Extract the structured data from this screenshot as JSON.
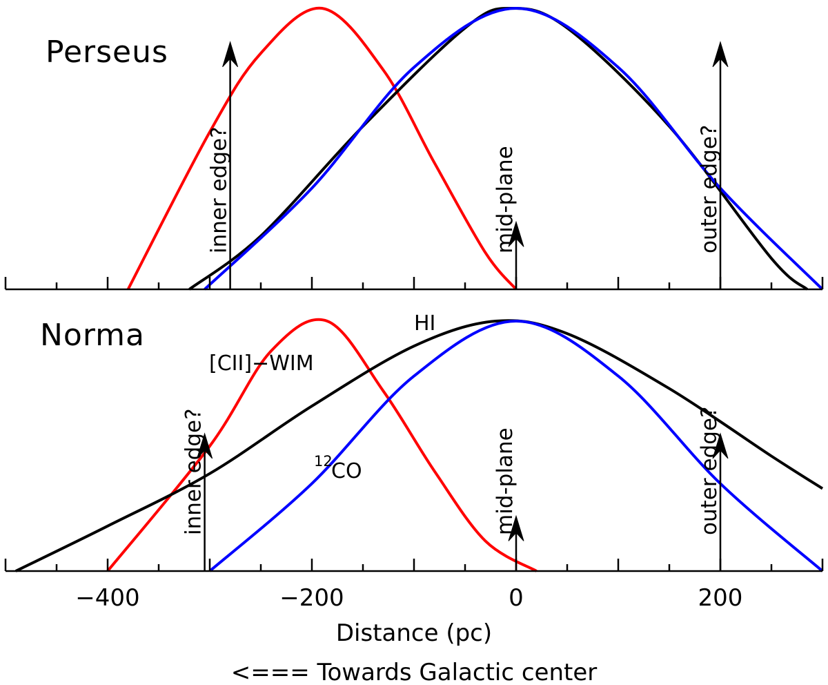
{
  "chart_data": [
    {
      "type": "line",
      "title": "Perseus",
      "xlabel": "",
      "ylabel": "",
      "xlim": [
        -500,
        300
      ],
      "ylim": [
        0,
        1
      ],
      "grid": false,
      "series": [
        {
          "name": "[CII]-WIM",
          "color": "#ff0000",
          "center": -190,
          "range": [
            -380,
            0
          ],
          "x": [
            -380,
            -300,
            -250,
            -190,
            -130,
            -80,
            -30,
            0
          ],
          "y": [
            0,
            0.56,
            0.84,
            1.0,
            0.78,
            0.45,
            0.13,
            0
          ]
        },
        {
          "name": "HI",
          "color": "#000000",
          "center": -5,
          "range": [
            -320,
            285
          ],
          "x": [
            -320,
            -250,
            -150,
            -50,
            -5,
            50,
            150,
            250,
            285
          ],
          "y": [
            0,
            0.19,
            0.58,
            0.93,
            1.0,
            0.93,
            0.58,
            0.11,
            0
          ]
        },
        {
          "name": "12CO",
          "color": "#0000ff",
          "center": 0,
          "range": [
            -305,
            300
          ],
          "x": [
            -305,
            -200,
            -100,
            0,
            100,
            200,
            300
          ],
          "y": [
            0,
            0.36,
            0.79,
            1.0,
            0.79,
            0.36,
            0
          ]
        }
      ],
      "markers": [
        {
          "label": "inner edge?",
          "x": -280,
          "height": 0.88
        },
        {
          "label": "mid-plane",
          "x": 0,
          "height": 0.24
        },
        {
          "label": "outer edge?",
          "x": 200,
          "height": 0.88
        }
      ]
    },
    {
      "type": "line",
      "title": "Norma",
      "xlabel": "Distance (pc)",
      "ylabel": "",
      "xlim": [
        -500,
        300
      ],
      "ylim": [
        0,
        1
      ],
      "grid": false,
      "xticks": [
        -400,
        -200,
        0,
        200
      ],
      "xtick_labels": [
        "−400",
        "−200",
        "0",
        "200"
      ],
      "series": [
        {
          "name": "[CII]-WIM",
          "color": "#ff0000",
          "center": -185,
          "range": [
            -400,
            20
          ],
          "x": [
            -400,
            -300,
            -240,
            -185,
            -130,
            -80,
            -30,
            20
          ],
          "y": [
            0,
            0.5,
            0.88,
            1.0,
            0.72,
            0.4,
            0.12,
            0
          ]
        },
        {
          "name": "HI",
          "color": "#000000",
          "center": -20,
          "range": [
            -490,
            300
          ],
          "x": [
            -490,
            -400,
            -300,
            -200,
            -100,
            -20,
            50,
            150,
            250,
            300
          ],
          "y": [
            0,
            0.18,
            0.39,
            0.66,
            0.9,
            1.0,
            0.95,
            0.73,
            0.46,
            0.33
          ]
        },
        {
          "name": "12CO",
          "color": "#0000ff",
          "center": 0,
          "range": [
            -300,
            300
          ],
          "x": [
            -300,
            -200,
            -100,
            0,
            100,
            200,
            300
          ],
          "y": [
            0,
            0.35,
            0.78,
            1.0,
            0.78,
            0.35,
            0
          ]
        }
      ],
      "markers": [
        {
          "label": "inner edge?",
          "x": -305,
          "height": 0.55
        },
        {
          "label": "mid-plane",
          "x": 0,
          "height": 0.22
        },
        {
          "label": "outer edge?",
          "x": 200,
          "height": 0.55
        }
      ]
    }
  ],
  "annotations": {
    "hi": "HI",
    "cii": "[CII]−WIM",
    "co_sup": "12",
    "co": "CO"
  },
  "footer": "<=== Towards Galactic center"
}
